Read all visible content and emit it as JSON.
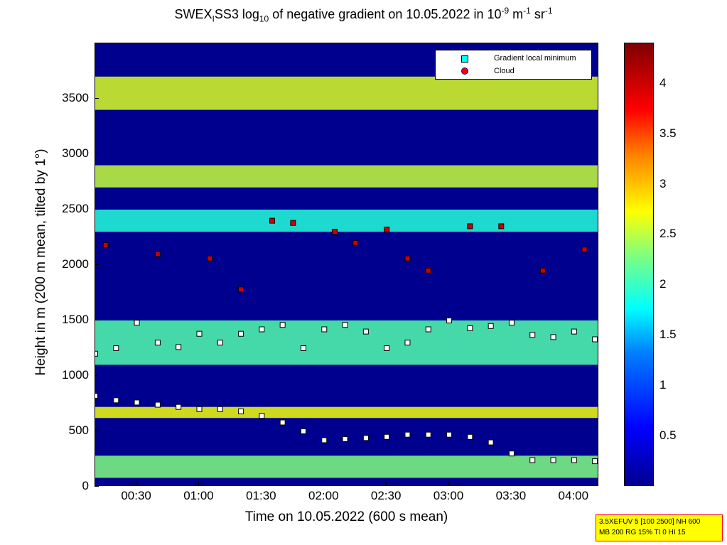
{
  "title_parts": {
    "a": "SWEX",
    "a_sub": "I",
    "b": "SS3 log",
    "b_sub": "10",
    "c": " of negative gradient on 10.05.2022 in 10",
    "c_sup": "-9",
    "d": " m",
    "d_sup": "-1",
    "e": " sr",
    "e_sup": "-1"
  },
  "axes": {
    "ylabel": "Height in m (200 m mean, tilted by 1°)",
    "xlabel": "Time on 10.05.2022 (600 s mean)",
    "yticks": [
      "0",
      "500",
      "1000",
      "1500",
      "2000",
      "2500",
      "3000",
      "3500"
    ],
    "xticks": [
      "00:30",
      "01:00",
      "01:30",
      "02:00",
      "02:30",
      "03:00",
      "03:30",
      "04:00"
    ],
    "cticks": [
      "0.5",
      "1",
      "1.5",
      "2",
      "2.5",
      "3",
      "3.5",
      "4"
    ]
  },
  "legend": {
    "gradient_label": "Gradient local minimum",
    "cloud_label": "Cloud"
  },
  "info": {
    "line1": "3.5XEFUV 5 [100 2500] NH 600",
    "line2": "MB 200 RG 15% TI 0 HI 15"
  },
  "colors": {
    "gradient_marker": "#ffffff",
    "gradient_marker_legend": "#00ffff",
    "cloud_marker": "#cc0000",
    "background": "#00008f"
  },
  "chart_data": {
    "type": "heatmap",
    "xlim": [
      "00:10",
      "04:12"
    ],
    "ylim": [
      0,
      4000
    ],
    "clim": [
      0,
      4.4
    ],
    "colormap": "jet",
    "layers": [
      {
        "height_start": 80,
        "height_end": 280,
        "value": 2.2
      },
      {
        "height_start": 620,
        "height_end": 720,
        "value": 2.7
      },
      {
        "height_start": 1100,
        "height_end": 1500,
        "value": 2.0
      },
      {
        "height_start": 2300,
        "height_end": 2500,
        "value": 1.8
      },
      {
        "height_start": 2700,
        "height_end": 2900,
        "value": 2.5
      },
      {
        "height_start": 3400,
        "height_end": 3700,
        "value": 2.6
      }
    ],
    "series": [
      {
        "name": "Gradient local minimum",
        "type": "scatter",
        "x": [
          "00:10",
          "00:20",
          "00:30",
          "00:40",
          "00:50",
          "01:00",
          "01:10",
          "01:20",
          "01:30",
          "01:40",
          "01:50",
          "02:00",
          "02:10",
          "02:20",
          "02:30",
          "02:40",
          "02:50",
          "03:00",
          "03:10",
          "03:20",
          "03:30",
          "03:40",
          "03:50",
          "04:00",
          "04:10"
        ],
        "y": [
          820,
          780,
          760,
          740,
          720,
          700,
          700,
          680,
          640,
          580,
          500,
          420,
          430,
          440,
          450,
          470,
          470,
          470,
          450,
          400,
          300,
          240,
          240,
          240,
          230
        ]
      },
      {
        "name": "Gradient local minimum",
        "type": "scatter",
        "x": [
          "00:10",
          "00:20",
          "00:30",
          "00:40",
          "00:50",
          "01:00",
          "01:10",
          "01:20",
          "01:30",
          "01:40",
          "01:50",
          "02:00",
          "02:10",
          "02:20",
          "02:30",
          "02:40",
          "02:50",
          "03:00",
          "03:10",
          "03:20",
          "03:30",
          "03:40",
          "03:50",
          "04:00",
          "04:10"
        ],
        "y": [
          1200,
          1250,
          1480,
          1300,
          1260,
          1380,
          1300,
          1380,
          1420,
          1460,
          1250,
          1420,
          1460,
          1400,
          1250,
          1300,
          1420,
          1500,
          1430,
          1450,
          1480,
          1370,
          1350,
          1400,
          1330
        ]
      },
      {
        "name": "Cloud",
        "type": "scatter",
        "x": [
          "00:15",
          "00:40",
          "01:05",
          "01:20",
          "01:35",
          "01:45",
          "02:05",
          "02:15",
          "02:30",
          "02:40",
          "02:50",
          "03:10",
          "03:25",
          "03:45",
          "04:05"
        ],
        "y": [
          2180,
          2100,
          2060,
          1780,
          2400,
          2380,
          2300,
          2200,
          2320,
          2060,
          1950,
          2350,
          2350,
          1950,
          2140
        ]
      }
    ]
  }
}
